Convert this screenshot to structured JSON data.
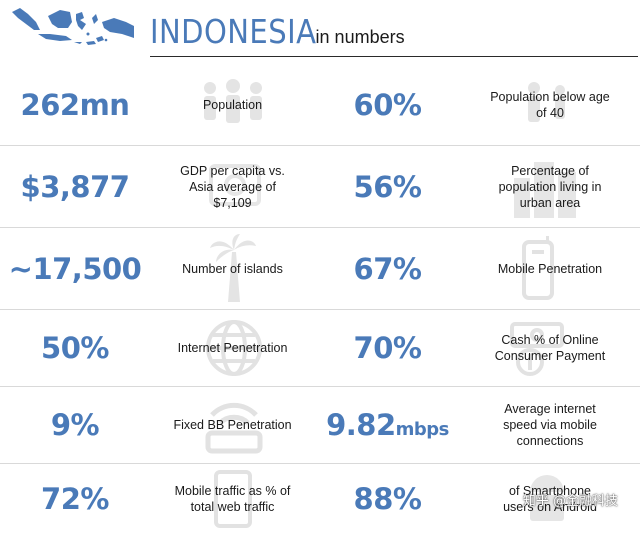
{
  "header": {
    "title": "INDONESIA",
    "subtitle": "in numbers",
    "map_icon": "indonesia-map-icon",
    "accent_color": "#4a7ab8"
  },
  "rows": [
    {
      "left": {
        "value": "262mn",
        "label": "Population",
        "icon": "people-icon"
      },
      "right": {
        "value": "60%",
        "label": "Population below age of 40",
        "icon": "young-people-icon"
      }
    },
    {
      "left": {
        "value": "$3,877",
        "label": "GDP per capita vs. Asia average of $7,109",
        "icon": "money-icon"
      },
      "right": {
        "value": "56%",
        "label": "Percentage of population living in urban area",
        "icon": "city-icon"
      }
    },
    {
      "left": {
        "value": "~17,500",
        "label": "Number of islands",
        "icon": "palm-tree-icon"
      },
      "right": {
        "value": "67%",
        "label": "Mobile Penetration",
        "icon": "mobile-phone-icon"
      }
    },
    {
      "left": {
        "value": "50%",
        "label": "Internet Penetration",
        "icon": "globe-icon"
      },
      "right": {
        "value": "70%",
        "label": "Cash % of Online Consumer Payment",
        "icon": "cash-icon"
      }
    },
    {
      "left": {
        "value": "9%",
        "label": "Fixed BB Penetration",
        "icon": "wifi-router-icon"
      },
      "right": {
        "value": "9.82",
        "unit": "mbps",
        "label": "Average internet speed via mobile connections",
        "icon": "speed-icon"
      }
    },
    {
      "left": {
        "value": "72%",
        "label": "Mobile traffic as % of total web traffic",
        "icon": "tablet-icon"
      },
      "right": {
        "value": "88%",
        "label": "of Smartphone users on Android",
        "icon": "android-icon"
      }
    }
  ],
  "watermark": "知乎 @金融科技"
}
